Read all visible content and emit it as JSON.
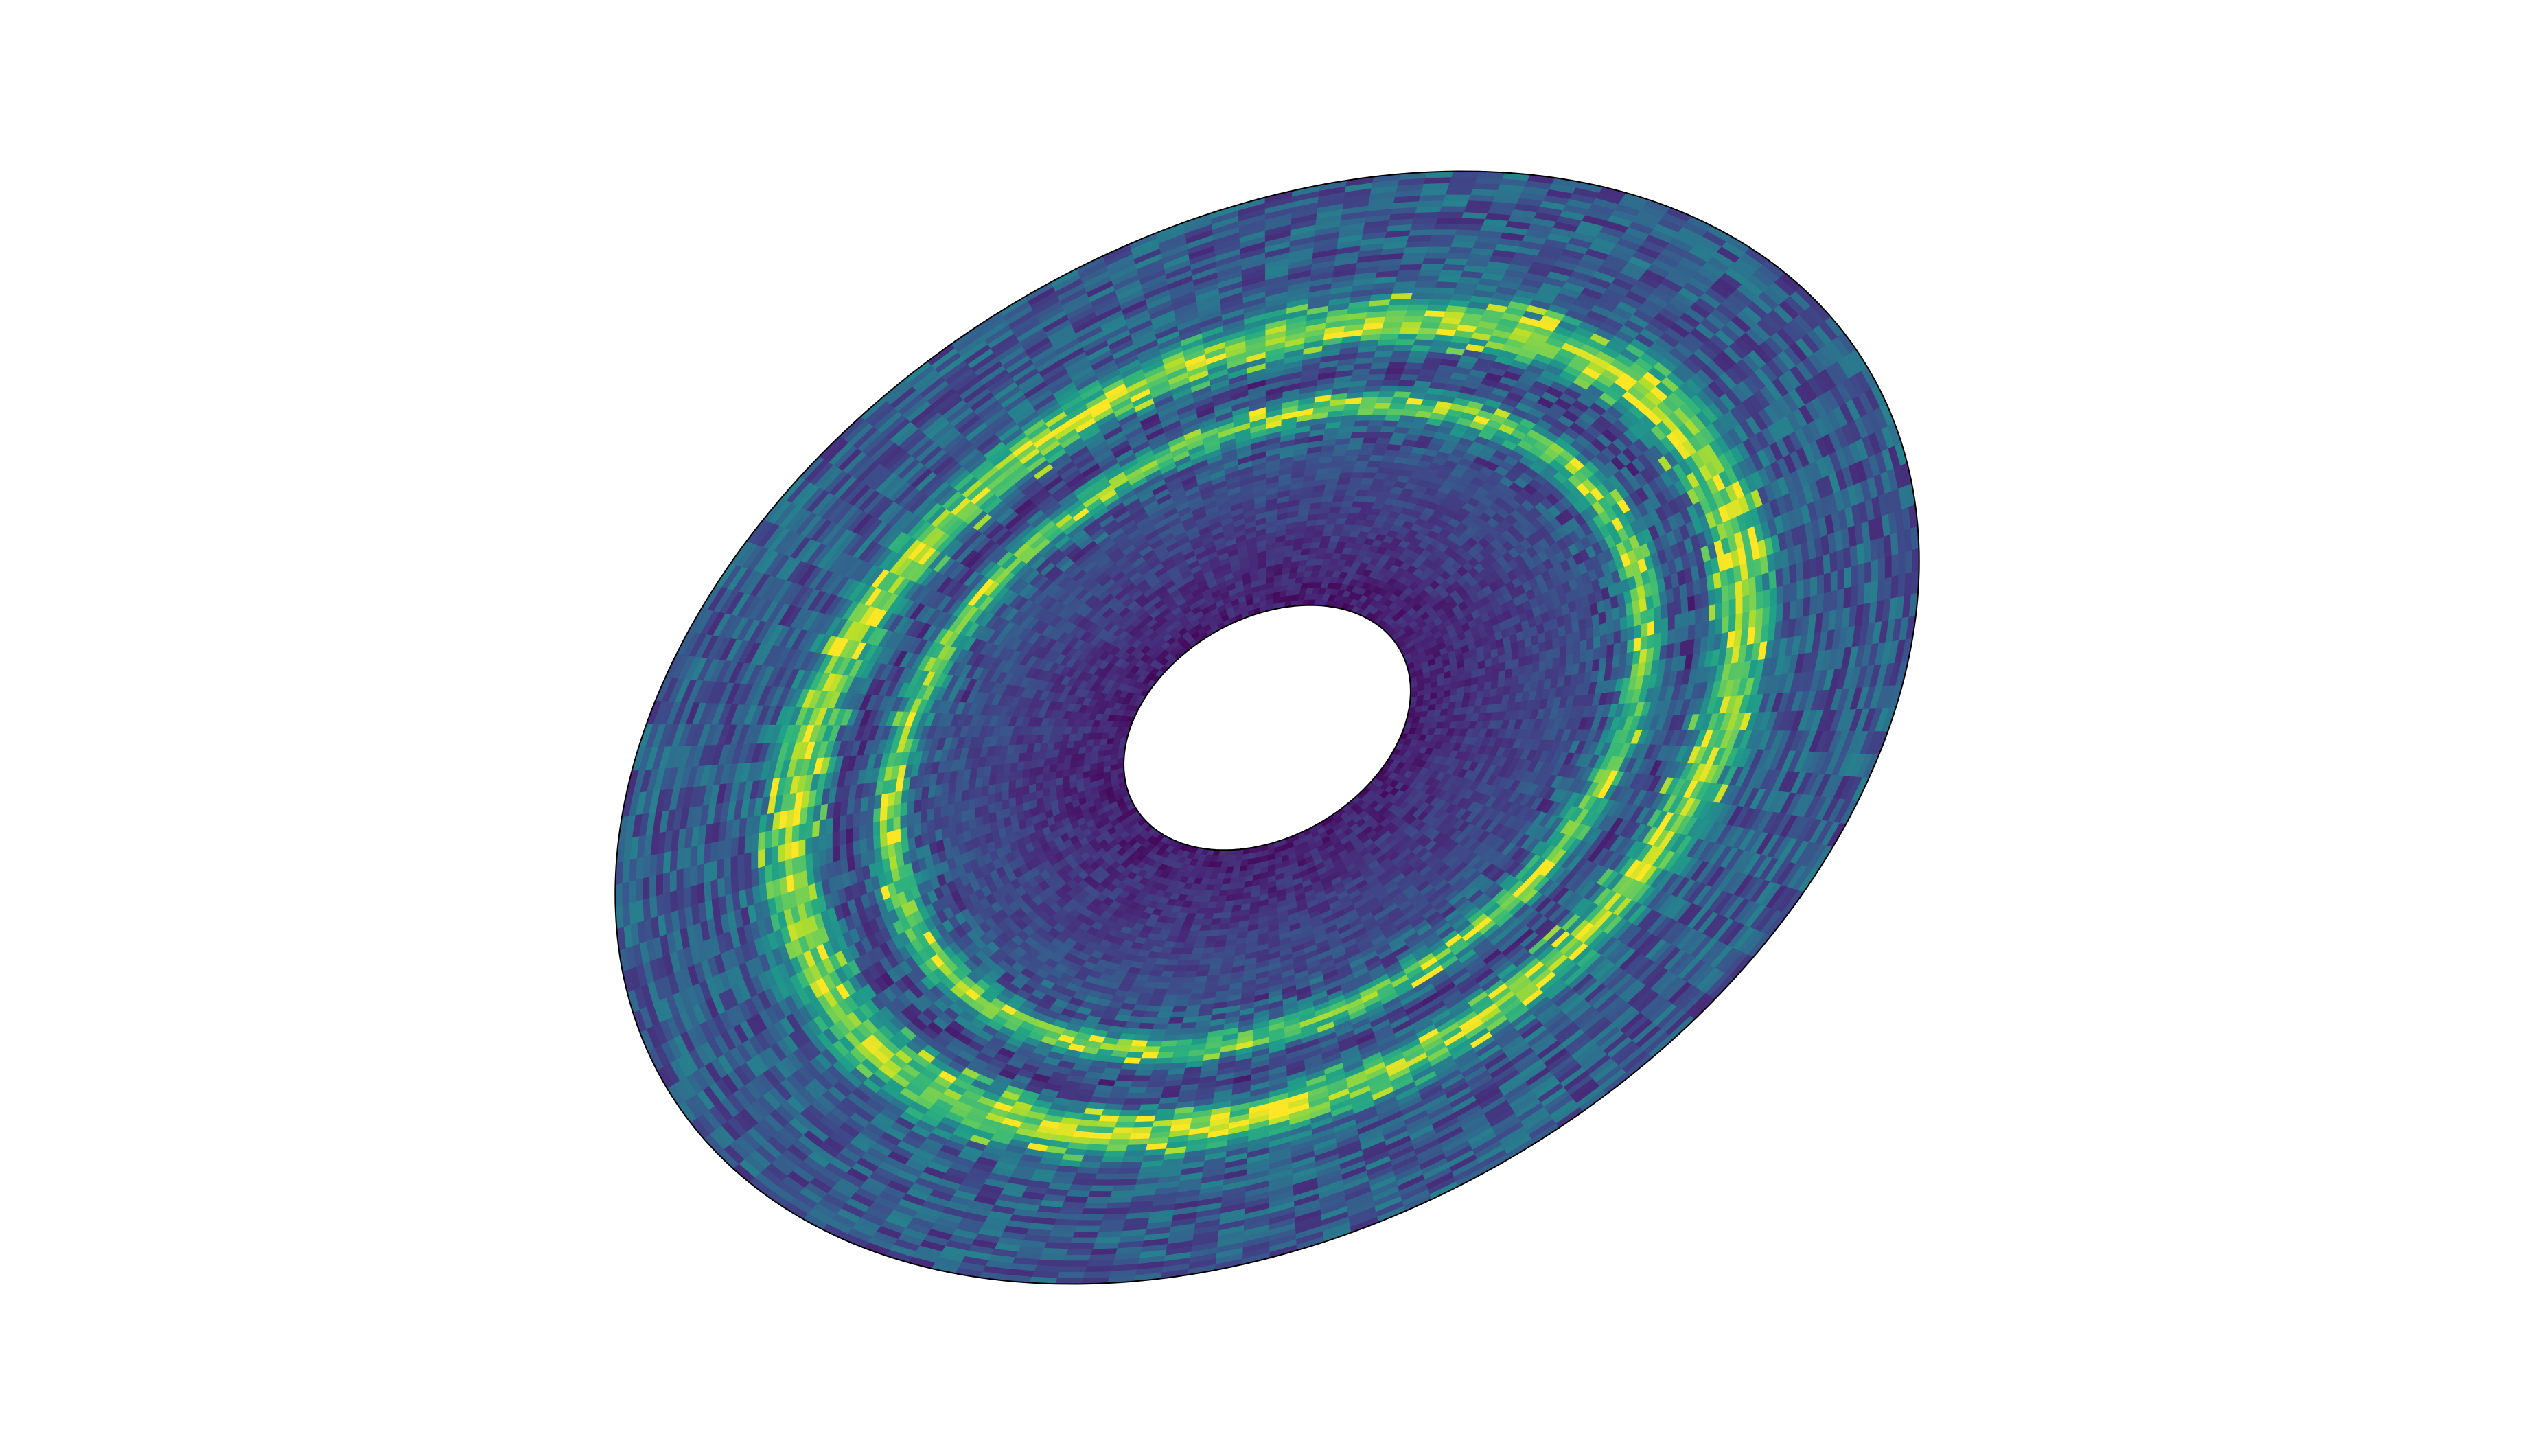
{
  "chart_data": {
    "type": "heatmap",
    "projection": "polar-inclined",
    "title": "",
    "xlabel": "",
    "ylabel": "",
    "axes_visible": false,
    "grid": false,
    "legend": "none",
    "colormap": "viridis",
    "colormap_stops": [
      "#440154",
      "#482878",
      "#3e4a89",
      "#31688e",
      "#26828e",
      "#1f9e89",
      "#35b779",
      "#6ece58",
      "#b5de2b",
      "#fde725"
    ],
    "outline_color": "#000000",
    "r_range": [
      0.22,
      1.0
    ],
    "r_bins": 75,
    "theta_bins": 150,
    "value_range": [
      0,
      1
    ],
    "radial_profile": {
      "inner_cavity": [
        0.22,
        0.26,
        0.06
      ],
      "background_level": 0.28,
      "bright_ring_1": {
        "r": 0.58,
        "width": 0.018,
        "peak": 0.5
      },
      "bright_ring_2": {
        "r": 0.73,
        "width": 0.03,
        "peak": 0.55
      },
      "gap": {
        "r": 0.66,
        "depth": 0.07
      }
    },
    "noise_amplitude": 0.32,
    "random_seed": 42
  }
}
